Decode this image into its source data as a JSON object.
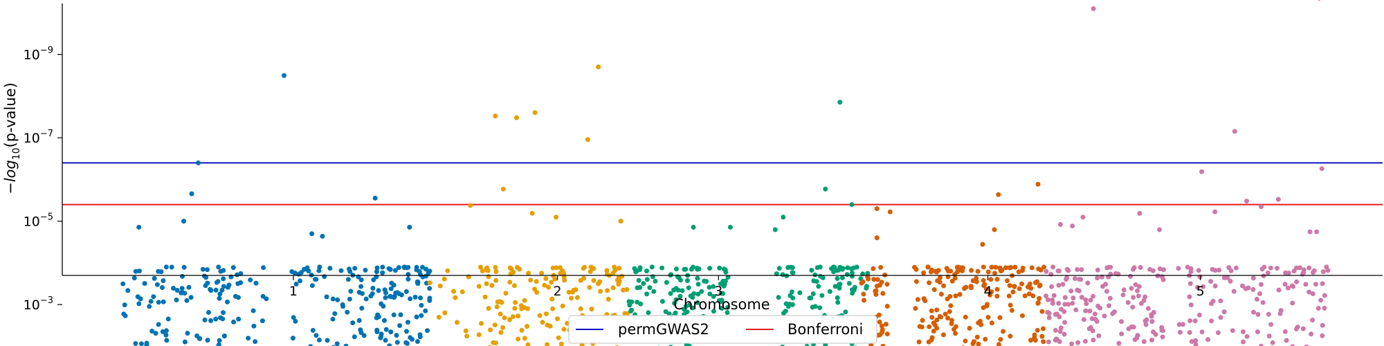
{
  "chart_data": {
    "type": "scatter",
    "title": "",
    "xlabel": "Chromosome",
    "ylabel": "-log10(p-value)",
    "ylabel_parts": {
      "prefix": "−",
      "log": "log",
      "sub": "10",
      "suffix": "(p-value)"
    },
    "y_scale": "log",
    "ylim": [
      0.0002,
      6e-11
    ],
    "y_ticks": [
      {
        "value": 1e-09,
        "base": "10",
        "exp": "−9"
      },
      {
        "value": 1e-07,
        "base": "10",
        "exp": "−7"
      },
      {
        "value": 1e-05,
        "base": "10",
        "exp": "−5"
      },
      {
        "value": 0.001,
        "base": "10",
        "exp": "−3"
      }
    ],
    "xlim": [
      0,
      1
    ],
    "x_ticks": [
      {
        "value": 0.175,
        "label": "1"
      },
      {
        "value": 0.375,
        "label": "2"
      },
      {
        "value": 0.497,
        "label": "3"
      },
      {
        "value": 0.701,
        "label": "4"
      },
      {
        "value": 0.862,
        "label": "5"
      }
    ],
    "grid": false,
    "legend_position": "bottom-center",
    "thresholds": [
      {
        "name": "permGWAS2",
        "value": 4e-07,
        "color": "#1010c0"
      },
      {
        "name": "Bonferroni",
        "value": 4e-06,
        "color": "#e8191b"
      }
    ],
    "series": [
      {
        "color": "#0072b2",
        "segments": [
          [
            0.045,
            0.155,
            120
          ],
          [
            0.173,
            0.24,
            70
          ],
          [
            0.235,
            0.28,
            90
          ]
        ],
        "outliers": [
          [
            0.168,
            3.2e-09
          ],
          [
            0.103,
            4e-07
          ],
          [
            0.098,
            2.2e-06
          ],
          [
            0.237,
            2.8e-06
          ],
          [
            0.058,
            1.4e-05
          ],
          [
            0.092,
            1e-05
          ],
          [
            0.189,
            2e-05
          ],
          [
            0.197,
            2.3e-05
          ],
          [
            0.263,
            1.4e-05
          ]
        ]
      },
      {
        "color": "#e69f00",
        "segments": [
          [
            0.278,
            0.32,
            20
          ],
          [
            0.32,
            0.43,
            150
          ]
        ],
        "outliers": [
          [
            0.406,
            2e-09
          ],
          [
            0.358,
            2.5e-08
          ],
          [
            0.328,
            3e-08
          ],
          [
            0.344,
            3.3e-08
          ],
          [
            0.398,
            1.1e-07
          ],
          [
            0.334,
            1.7e-06
          ],
          [
            0.309,
            4.2e-06
          ],
          [
            0.356,
            6.5e-06
          ],
          [
            0.374,
            8e-06
          ],
          [
            0.423,
            1e-05
          ]
        ]
      },
      {
        "color": "#009e73",
        "segments": [
          [
            0.429,
            0.507,
            140
          ],
          [
            0.54,
            0.61,
            110
          ]
        ],
        "outliers": [
          [
            0.589,
            1.4e-08
          ],
          [
            0.578,
            1.7e-06
          ],
          [
            0.598,
            4e-06
          ],
          [
            0.546,
            8e-06
          ],
          [
            0.478,
            1.4e-05
          ],
          [
            0.506,
            1.4e-05
          ],
          [
            0.54,
            1.6e-05
          ]
        ]
      },
      {
        "color": "#d55e00",
        "segments": [
          [
            0.605,
            0.625,
            35
          ],
          [
            0.645,
            0.745,
            180
          ]
        ],
        "outliers": [
          [
            0.739,
            1.3e-06
          ],
          [
            0.709,
            2.3e-06
          ],
          [
            0.617,
            5e-06
          ],
          [
            0.627,
            6e-06
          ],
          [
            0.617,
            2.5e-05
          ],
          [
            0.706,
            1.6e-05
          ],
          [
            0.697,
            3.6e-05
          ]
        ]
      },
      {
        "color": "#cc79a7",
        "segments": [
          [
            0.745,
            0.835,
            150
          ],
          [
            0.845,
            0.96,
            130
          ]
        ],
        "outliers": [
          [
            0.952,
            4.5e-11
          ],
          [
            0.781,
            8e-11
          ],
          [
            0.888,
            7e-08
          ],
          [
            0.863,
            6.5e-07
          ],
          [
            0.954,
            5.5e-07
          ],
          [
            0.897,
            3.3e-06
          ],
          [
            0.921,
            3e-06
          ],
          [
            0.756,
            1.2e-05
          ],
          [
            0.765,
            1.3e-05
          ],
          [
            0.773,
            8e-06
          ],
          [
            0.816,
            6.5e-06
          ],
          [
            0.831,
            1.6e-05
          ],
          [
            0.873,
            6e-06
          ],
          [
            0.908,
            4.5e-06
          ],
          [
            0.945,
            1.8e-05
          ],
          [
            0.95,
            1.8e-05
          ]
        ]
      }
    ]
  }
}
